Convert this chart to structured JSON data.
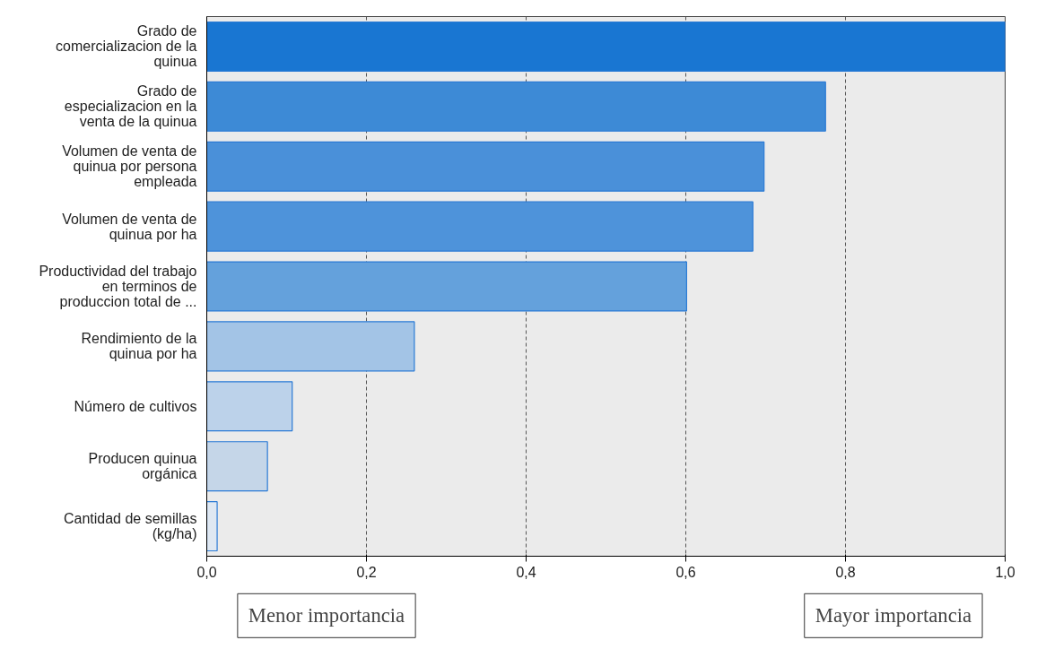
{
  "chart_data": {
    "type": "bar",
    "orientation": "horizontal",
    "categories": [
      "Grado de\ncomercializacion de la\nquinua",
      "Grado de\nespecializacion en la\nventa de la quinua",
      "Volumen de venta de\nquinua por persona\nempleada",
      "Volumen de venta de\nquinua por ha",
      "Productividad del trabajo\nen terminos de\nproduccion total de ...",
      "Rendimiento de la\nquinua por ha",
      "Número de cultivos",
      "Producen quinua\norgánica",
      "Cantidad de semillas\n(kg/ha)"
    ],
    "values": [
      1.0,
      0.775,
      0.698,
      0.684,
      0.601,
      0.26,
      0.107,
      0.076,
      0.013
    ],
    "colors": [
      "#1976d2",
      "#3d8ad6",
      "#4a90d9",
      "#4e93da",
      "#64a1dc",
      "#a3c4e6",
      "#bcd2ea",
      "#c5d6e8",
      "#dfe8f2"
    ],
    "xlim": [
      0,
      1
    ],
    "xticks": [
      {
        "value": 0,
        "label": "0,0"
      },
      {
        "value": 0.2,
        "label": "0,2"
      },
      {
        "value": 0.4,
        "label": "0,4"
      },
      {
        "value": 0.6,
        "label": "0,6"
      },
      {
        "value": 0.8,
        "label": "0,8"
      },
      {
        "value": 1,
        "label": "1,0"
      }
    ],
    "grid": "x",
    "annotations": [
      "Menor importancia",
      "Mayor importancia"
    ]
  }
}
